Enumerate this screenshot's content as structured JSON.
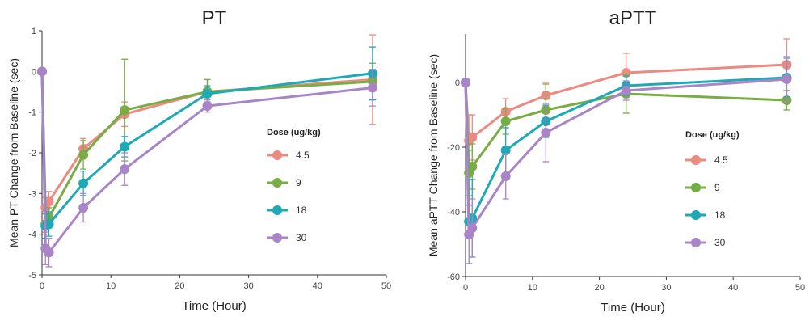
{
  "chart_data": [
    {
      "type": "line",
      "title": "PT",
      "xlabel": "Time (Hour)",
      "ylabel": "Mean PT Change from Baseline (sec)",
      "xlim": [
        0,
        50
      ],
      "ylim": [
        -5,
        1
      ],
      "xticks": [
        0,
        10,
        20,
        30,
        40,
        50
      ],
      "yticks": [
        -5,
        -4,
        -3,
        -2,
        -1,
        0,
        1
      ],
      "x": [
        0,
        0.5,
        1,
        6,
        12,
        24,
        48
      ],
      "legend_title": "Dose (ug/kg)",
      "legend_placement": "center-right",
      "grid": false,
      "series": [
        {
          "name": "4.5",
          "color": "#ea8a80",
          "values": [
            0,
            -3.35,
            -3.2,
            -1.9,
            -1.05,
            -0.5,
            -0.2
          ],
          "errors": [
            0,
            0.25,
            0.25,
            0.25,
            0.3,
            0.3,
            1.1
          ]
        },
        {
          "name": "9",
          "color": "#78ad45",
          "values": [
            0,
            -3.75,
            -3.6,
            -2.05,
            -0.95,
            -0.5,
            -0.25
          ],
          "errors": [
            0,
            0.25,
            0.25,
            0.35,
            1.25,
            0.3,
            0.45
          ]
        },
        {
          "name": "18",
          "color": "#1fa9b5",
          "values": [
            0,
            -3.8,
            -3.75,
            -2.75,
            -1.85,
            -0.55,
            -0.05
          ],
          "errors": [
            0,
            0.3,
            0.3,
            0.3,
            0.25,
            0.2,
            0.65
          ]
        },
        {
          "name": "30",
          "color": "#a985c8",
          "values": [
            0,
            -4.35,
            -4.45,
            -3.35,
            -2.4,
            -0.85,
            -0.4
          ],
          "errors": [
            0,
            0.4,
            0.35,
            0.35,
            0.4,
            0.15,
            0.45
          ]
        }
      ]
    },
    {
      "type": "line",
      "title": "aPTT",
      "xlabel": "Time (Hour)",
      "ylabel": "Mean aPTT Change from Baseline (sec)",
      "xlim": [
        0,
        50
      ],
      "ylim": [
        -60,
        15
      ],
      "xticks": [
        0,
        10,
        20,
        30,
        40,
        50
      ],
      "yticks": [
        -60,
        -40,
        -20,
        0
      ],
      "x": [
        0,
        0.5,
        1,
        6,
        12,
        24,
        48
      ],
      "legend_title": "Dose (ug/kg)",
      "legend_placement": "center-right",
      "grid": false,
      "series": [
        {
          "name": "4.5",
          "color": "#ea8a80",
          "values": [
            0,
            -18,
            -17,
            -9,
            -4,
            3,
            5.5
          ],
          "errors": [
            0,
            8,
            7,
            4,
            4,
            6,
            8
          ]
        },
        {
          "name": "9",
          "color": "#78ad45",
          "values": [
            0,
            -28,
            -26,
            -12,
            -8.5,
            -3.5,
            -5.5
          ],
          "errors": [
            0,
            7,
            7,
            4,
            8,
            6,
            3
          ]
        },
        {
          "name": "18",
          "color": "#1fa9b5",
          "values": [
            0,
            -43,
            -42,
            -21,
            -12,
            -1,
            1.5
          ],
          "errors": [
            0,
            13,
            12,
            7,
            5,
            3,
            6
          ]
        },
        {
          "name": "30",
          "color": "#a985c8",
          "values": [
            0,
            -47,
            -45,
            -29,
            -15.5,
            -2.5,
            1
          ],
          "errors": [
            0,
            9,
            9,
            7,
            9,
            3,
            7
          ]
        }
      ]
    }
  ]
}
